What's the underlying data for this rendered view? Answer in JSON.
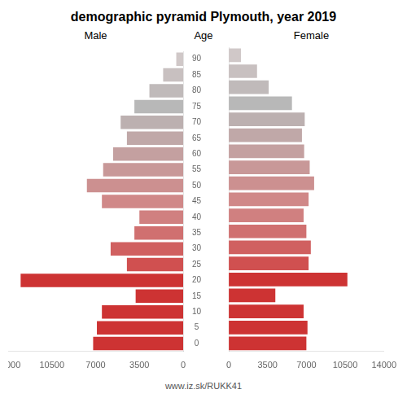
{
  "chart_data": {
    "type": "bar",
    "orientation": "horizontal",
    "title": "demographic pyramid Plymouth, year 2019",
    "footer": "www.iz.sk/RUKK41",
    "ylabel": "Age",
    "categories": [
      "0",
      "5",
      "10",
      "15",
      "20",
      "25",
      "30",
      "35",
      "40",
      "45",
      "50",
      "55",
      "60",
      "65",
      "70",
      "75",
      "80",
      "85",
      "90"
    ],
    "series": [
      {
        "name": "Male",
        "values": [
          7200,
          6900,
          6500,
          3800,
          13000,
          4500,
          5800,
          3900,
          3500,
          6500,
          7700,
          6400,
          5600,
          4500,
          5000,
          3900,
          2700,
          1600,
          550
        ]
      },
      {
        "name": "Female",
        "values": [
          7000,
          7100,
          6750,
          4200,
          10700,
          7200,
          7400,
          7000,
          6750,
          7200,
          7700,
          7300,
          6800,
          6600,
          6850,
          5700,
          3600,
          2550,
          1100
        ]
      }
    ],
    "colors": [
      "#cd3333",
      "#cd3333",
      "#cd3333",
      "#cd3333",
      "#cd3333",
      "#d05050",
      "#d06060",
      "#d07070",
      "#d08080",
      "#d08888",
      "#cc9090",
      "#c89898",
      "#c4a0a0",
      "#c0a8a8",
      "#bcb0b0",
      "#b8b8b8",
      "#c0baba",
      "#c8c0c0",
      "#d0c8c8"
    ],
    "xlim": [
      0,
      14000
    ],
    "xticks": [
      0,
      3500,
      7000,
      10500,
      14000
    ],
    "grid": false
  }
}
